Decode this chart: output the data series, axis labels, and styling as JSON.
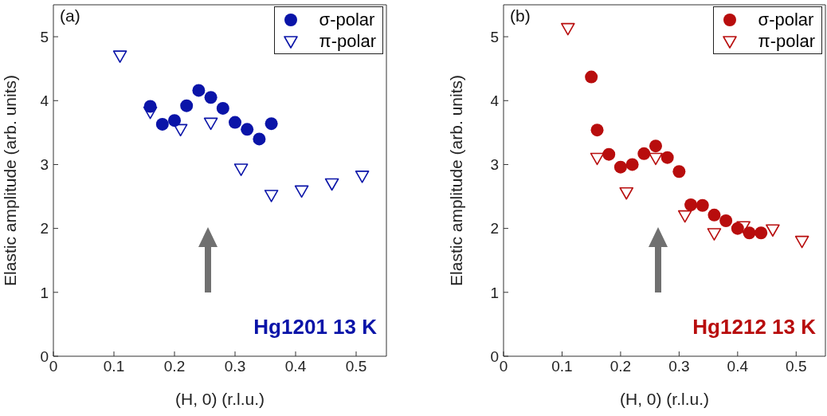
{
  "chart_data": [
    {
      "type": "scatter",
      "xlabel": "(H, 0) (r.l.u.)",
      "ylabel": "Elastic amplitude (arb. units)",
      "annotations": [
        "(a)",
        "Hg1201 13 K"
      ],
      "xlim": [
        0,
        0.55
      ],
      "xticks": [
        0,
        0.1,
        0.2,
        0.3,
        0.4,
        0.5
      ],
      "ylim": [
        0,
        5.5
      ],
      "yticks": [
        0,
        1,
        2,
        3,
        4,
        5
      ],
      "grid": false,
      "legend": "top right",
      "series": [
        {
          "name": "σ-polar",
          "color": "#0a14a8",
          "marker": "circle",
          "x": [
            0.16,
            0.18,
            0.2,
            0.22,
            0.24,
            0.26,
            0.28,
            0.3,
            0.32,
            0.34,
            0.36
          ],
          "values": [
            3.91,
            3.63,
            3.69,
            3.92,
            4.16,
            4.05,
            3.88,
            3.66,
            3.55,
            3.4,
            3.64
          ]
        },
        {
          "name": "π-polar",
          "color": "#0a14a8",
          "marker": "triangle",
          "x": [
            0.11,
            0.16,
            0.21,
            0.26,
            0.31,
            0.36,
            0.41,
            0.46,
            0.51
          ],
          "values": [
            4.7,
            3.82,
            3.55,
            3.65,
            2.93,
            2.52,
            2.59,
            2.7,
            2.82
          ]
        }
      ]
    },
    {
      "type": "scatter",
      "xlabel": "(H, 0) (r.l.u.)",
      "ylabel": "Elastic amplitude (arb. units)",
      "annotations": [
        "(b)",
        "Hg1212 13 K"
      ],
      "xlim": [
        0,
        0.55
      ],
      "xticks": [
        0,
        0.1,
        0.2,
        0.3,
        0.4,
        0.5
      ],
      "ylim": [
        0,
        5.5
      ],
      "yticks": [
        0,
        1,
        2,
        3,
        4,
        5
      ],
      "grid": false,
      "legend": "top right",
      "series": [
        {
          "name": "σ-polar",
          "color": "#b80d0d",
          "marker": "circle",
          "x": [
            0.15,
            0.16,
            0.18,
            0.2,
            0.22,
            0.24,
            0.26,
            0.28,
            0.3,
            0.32,
            0.34,
            0.36,
            0.38,
            0.4,
            0.42,
            0.44
          ],
          "values": [
            4.37,
            3.54,
            3.16,
            2.96,
            3.0,
            3.17,
            3.29,
            3.11,
            2.89,
            2.37,
            2.36,
            2.21,
            2.12,
            2.0,
            1.93,
            1.93
          ]
        },
        {
          "name": "π-polar",
          "color": "#b80d0d",
          "marker": "triangle",
          "x": [
            0.11,
            0.16,
            0.21,
            0.26,
            0.31,
            0.36,
            0.41,
            0.46,
            0.51
          ],
          "values": [
            5.13,
            3.1,
            2.56,
            3.1,
            2.2,
            1.92,
            2.03,
            1.98,
            1.8
          ]
        }
      ]
    }
  ]
}
